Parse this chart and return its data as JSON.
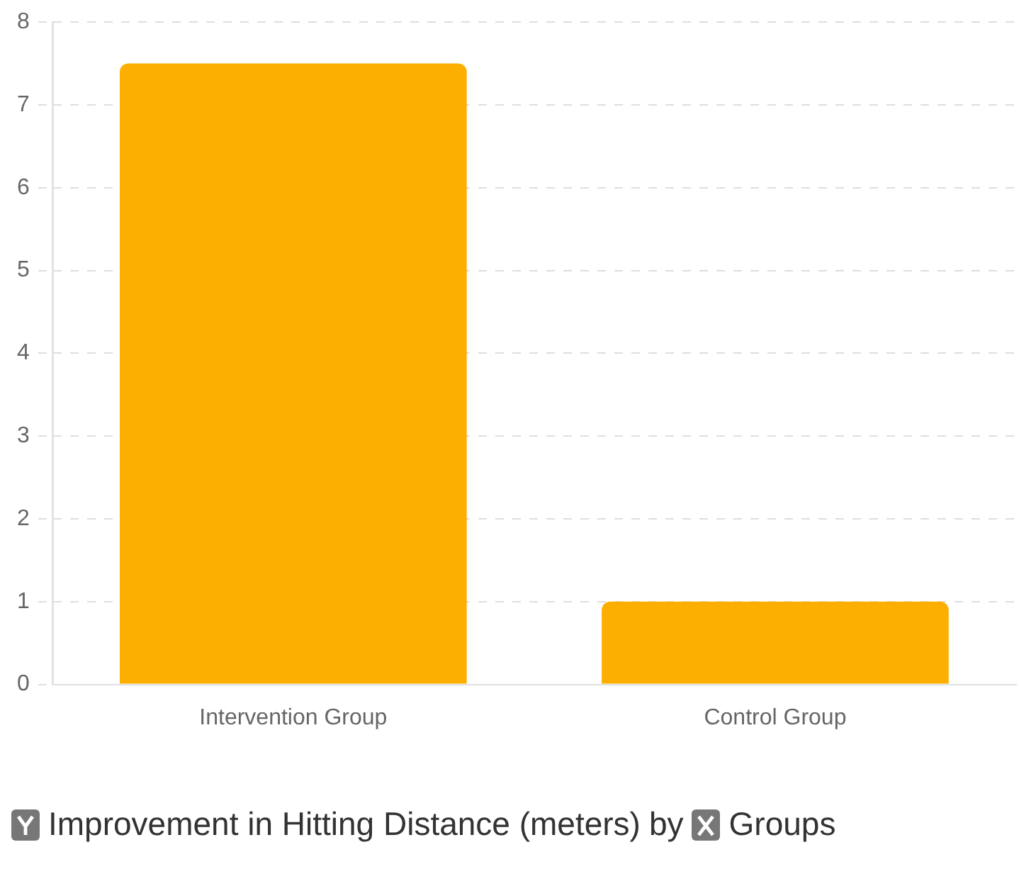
{
  "chart_data": {
    "type": "bar",
    "categories": [
      "Intervention Group",
      "Control Group"
    ],
    "values": [
      7.5,
      1
    ],
    "color": "#fcaf00",
    "ylim": [
      0,
      8
    ],
    "yticks": [
      0,
      1,
      2,
      3,
      4,
      5,
      6,
      7,
      8
    ],
    "grid": "y",
    "legend": false,
    "annotations": [
      "Improvement in Hitting Distance (meters)",
      "by",
      "Groups"
    ]
  }
}
